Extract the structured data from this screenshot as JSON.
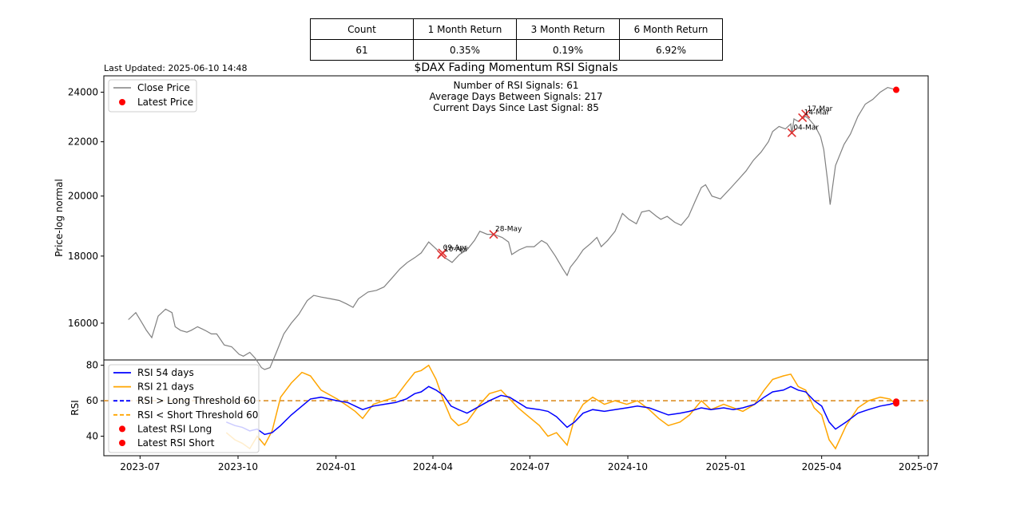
{
  "stats_table": {
    "headers": [
      "Count",
      "1 Month Return",
      "3 Month Return",
      "6 Month Return"
    ],
    "values": [
      "61",
      "0.35%",
      "0.19%",
      "6.92%"
    ]
  },
  "last_updated": "Last Updated: 2025-06-10 14:48",
  "chart_data": [
    {
      "type": "line",
      "title": "$DAX Fading Momentum RSI Signals",
      "ylabel": "Price-log normal",
      "ylim": [
        15000,
        24700
      ],
      "yscale": "log",
      "yticks": [
        16000,
        18000,
        20000,
        22000,
        24000
      ],
      "xlim": [
        "2023-05-28",
        "2025-07-10"
      ],
      "xticks": [
        "2023-07",
        "2023-10",
        "2024-01",
        "2024-04",
        "2024-07",
        "2024-10",
        "2025-01",
        "2025-04",
        "2025-07"
      ],
      "info_lines": [
        "Number of RSI Signals: 61",
        "Average Days Between Signals: 217",
        "Current Days Since Last Signal: 85"
      ],
      "legend": {
        "position": "top-left",
        "entries": [
          "Close Price",
          "Latest Price"
        ]
      },
      "colors": {
        "close": "#808080",
        "latest": "#ff0000",
        "signal": "#e03030"
      },
      "series": [
        {
          "name": "Close Price",
          "x": [
            "2023-06-20",
            "2023-06-27",
            "2023-07-03",
            "2023-07-07",
            "2023-07-12",
            "2023-07-18",
            "2023-07-25",
            "2023-07-31",
            "2023-08-03",
            "2023-08-08",
            "2023-08-14",
            "2023-08-18",
            "2023-08-24",
            "2023-08-31",
            "2023-09-06",
            "2023-09-11",
            "2023-09-18",
            "2023-09-25",
            "2023-10-02",
            "2023-10-06",
            "2023-10-12",
            "2023-10-17",
            "2023-10-23",
            "2023-10-26",
            "2023-10-31",
            "2023-11-06",
            "2023-11-13",
            "2023-11-20",
            "2023-11-27",
            "2023-12-05",
            "2023-12-11",
            "2023-12-18",
            "2023-12-27",
            "2024-01-04",
            "2024-01-11",
            "2024-01-17",
            "2024-01-22",
            "2024-01-31",
            "2024-02-08",
            "2024-02-15",
            "2024-02-22",
            "2024-03-01",
            "2024-03-08",
            "2024-03-15",
            "2024-03-21",
            "2024-03-28",
            "2024-04-05",
            "2024-04-10",
            "2024-04-19",
            "2024-04-26",
            "2024-05-03",
            "2024-05-10",
            "2024-05-15",
            "2024-05-22",
            "2024-05-28",
            "2024-06-05",
            "2024-06-11",
            "2024-06-14",
            "2024-06-21",
            "2024-06-28",
            "2024-07-05",
            "2024-07-12",
            "2024-07-17",
            "2024-07-25",
            "2024-08-01",
            "2024-08-05",
            "2024-08-08",
            "2024-08-14",
            "2024-08-20",
            "2024-08-27",
            "2024-09-02",
            "2024-09-06",
            "2024-09-12",
            "2024-09-19",
            "2024-09-26",
            "2024-10-02",
            "2024-10-09",
            "2024-10-14",
            "2024-10-21",
            "2024-10-28",
            "2024-11-01",
            "2024-11-07",
            "2024-11-14",
            "2024-11-20",
            "2024-11-27",
            "2024-12-03",
            "2024-12-09",
            "2024-12-13",
            "2024-12-19",
            "2024-12-27",
            "2025-01-06",
            "2025-01-13",
            "2025-01-20",
            "2025-01-27",
            "2025-02-03",
            "2025-02-10",
            "2025-02-14",
            "2025-02-20",
            "2025-02-26",
            "2025-03-03",
            "2025-03-04",
            "2025-03-06",
            "2025-03-10",
            "2025-03-13",
            "2025-03-17",
            "2025-03-20",
            "2025-03-26",
            "2025-03-31",
            "2025-04-03",
            "2025-04-07",
            "2025-04-09",
            "2025-04-14",
            "2025-04-22",
            "2025-04-28",
            "2025-05-05",
            "2025-05-12",
            "2025-05-19",
            "2025-05-26",
            "2025-06-02",
            "2025-06-06",
            "2025-06-10"
          ],
          "values": [
            16100,
            16300,
            16000,
            15800,
            15600,
            16200,
            16400,
            16300,
            15900,
            15800,
            15750,
            15800,
            15900,
            15800,
            15700,
            15700,
            15400,
            15350,
            15150,
            15100,
            15200,
            15050,
            14800,
            14750,
            14800,
            15200,
            15700,
            16000,
            16250,
            16650,
            16800,
            16750,
            16700,
            16650,
            16550,
            16450,
            16700,
            16900,
            16950,
            17050,
            17300,
            17600,
            17800,
            17950,
            18100,
            18450,
            18200,
            18000,
            17800,
            18050,
            18200,
            18500,
            18800,
            18700,
            18700,
            18600,
            18450,
            18050,
            18200,
            18300,
            18300,
            18500,
            18400,
            18000,
            17600,
            17400,
            17650,
            17900,
            18200,
            18400,
            18600,
            18300,
            18500,
            18800,
            19400,
            19200,
            19050,
            19450,
            19500,
            19300,
            19200,
            19300,
            19100,
            19000,
            19300,
            19800,
            20300,
            20400,
            20000,
            19900,
            20300,
            20600,
            20900,
            21300,
            21600,
            22000,
            22400,
            22600,
            22500,
            22700,
            22300,
            22900,
            22800,
            22900,
            23000,
            22900,
            22600,
            22200,
            21700,
            20400,
            19700,
            21100,
            21900,
            22300,
            23000,
            23500,
            23700,
            24000,
            24200,
            24150,
            24100
          ]
        },
        {
          "name": "Latest Price",
          "x": [
            "2025-06-10"
          ],
          "values": [
            24100
          ]
        },
        {
          "name": "RSI Signals",
          "x": [
            "2024-04-09",
            "2024-04-10",
            "2024-05-28",
            "2025-03-04",
            "2025-03-14",
            "2025-03-17"
          ],
          "values": [
            18050,
            18100,
            18700,
            22350,
            22950,
            23100
          ]
        }
      ],
      "annotations": [
        {
          "label": "10-Apr",
          "x": "2024-04-10"
        },
        {
          "label": "09-Apr",
          "x": "2024-04-09"
        },
        {
          "label": "28-May",
          "x": "2024-05-28"
        },
        {
          "label": "04-Mar",
          "x": "2025-03-04"
        },
        {
          "label": "14-Mar",
          "x": "2025-03-14"
        },
        {
          "label": "17-Mar",
          "x": "2025-03-17"
        }
      ]
    },
    {
      "type": "line",
      "ylabel": "RSI",
      "ylim": [
        29,
        83
      ],
      "yticks": [
        40,
        60,
        80
      ],
      "xlim": [
        "2023-05-28",
        "2025-07-10"
      ],
      "legend": {
        "position": "top-left",
        "entries": [
          "RSI 54 days",
          "RSI 21 days",
          "RSI > Long Threshold 60",
          "RSI < Short Threshold 60",
          "Latest RSI Long",
          "Latest RSI Short"
        ]
      },
      "colors": {
        "rsi54": "#0000ff",
        "rsi21": "#ffa500",
        "long_threshold": "#0000ff",
        "short_threshold": "#ffa500",
        "latest": "#ff0000"
      },
      "thresholds": {
        "long": 60,
        "short": 60
      },
      "series": [
        {
          "name": "RSI 54 days",
          "x": [
            "2023-09-20",
            "2023-09-28",
            "2023-10-05",
            "2023-10-12",
            "2023-10-19",
            "2023-10-26",
            "2023-11-02",
            "2023-11-10",
            "2023-11-20",
            "2023-11-30",
            "2023-12-08",
            "2023-12-18",
            "2024-01-02",
            "2024-01-12",
            "2024-01-19",
            "2024-01-26",
            "2024-02-05",
            "2024-02-15",
            "2024-02-26",
            "2024-03-07",
            "2024-03-15",
            "2024-03-21",
            "2024-03-28",
            "2024-04-04",
            "2024-04-11",
            "2024-04-18",
            "2024-04-25",
            "2024-05-03",
            "2024-05-15",
            "2024-05-24",
            "2024-06-04",
            "2024-06-12",
            "2024-06-20",
            "2024-06-28",
            "2024-07-10",
            "2024-07-18",
            "2024-07-26",
            "2024-08-05",
            "2024-08-12",
            "2024-08-20",
            "2024-08-29",
            "2024-09-09",
            "2024-09-19",
            "2024-09-30",
            "2024-10-10",
            "2024-10-21",
            "2024-10-30",
            "2024-11-08",
            "2024-11-19",
            "2024-11-28",
            "2024-12-09",
            "2024-12-18",
            "2024-12-30",
            "2025-01-08",
            "2025-01-17",
            "2025-01-28",
            "2025-02-06",
            "2025-02-14",
            "2025-02-24",
            "2025-03-03",
            "2025-03-10",
            "2025-03-17",
            "2025-03-25",
            "2025-04-01",
            "2025-04-08",
            "2025-04-14",
            "2025-04-24",
            "2025-05-05",
            "2025-05-15",
            "2025-05-26",
            "2025-06-04",
            "2025-06-10"
          ],
          "values": [
            48,
            46,
            45,
            43,
            44,
            41,
            42,
            46,
            52,
            57,
            61,
            62,
            60,
            59,
            57,
            55,
            57,
            58,
            59,
            61,
            64,
            65,
            68,
            66,
            63,
            57,
            55,
            53,
            57,
            60,
            63,
            62,
            59,
            56,
            55,
            54,
            51,
            45,
            48,
            53,
            55,
            54,
            55,
            56,
            57,
            56,
            54,
            52,
            53,
            54,
            56,
            55,
            56,
            55,
            56,
            58,
            62,
            65,
            66,
            68,
            66,
            65,
            60,
            57,
            48,
            44,
            48,
            53,
            55,
            57,
            58,
            59
          ]
        },
        {
          "name": "RSI 21 days",
          "x": [
            "2023-09-20",
            "2023-09-28",
            "2023-10-05",
            "2023-10-12",
            "2023-10-19",
            "2023-10-26",
            "2023-11-02",
            "2023-11-10",
            "2023-11-20",
            "2023-11-30",
            "2023-12-08",
            "2023-12-18",
            "2024-01-02",
            "2024-01-12",
            "2024-01-19",
            "2024-01-26",
            "2024-02-05",
            "2024-02-15",
            "2024-02-26",
            "2024-03-07",
            "2024-03-15",
            "2024-03-21",
            "2024-03-28",
            "2024-04-04",
            "2024-04-11",
            "2024-04-18",
            "2024-04-25",
            "2024-05-03",
            "2024-05-15",
            "2024-05-24",
            "2024-06-04",
            "2024-06-12",
            "2024-06-20",
            "2024-06-28",
            "2024-07-10",
            "2024-07-18",
            "2024-07-26",
            "2024-08-05",
            "2024-08-12",
            "2024-08-20",
            "2024-08-29",
            "2024-09-09",
            "2024-09-19",
            "2024-09-30",
            "2024-10-10",
            "2024-10-21",
            "2024-10-30",
            "2024-11-08",
            "2024-11-19",
            "2024-11-28",
            "2024-12-09",
            "2024-12-18",
            "2024-12-30",
            "2025-01-08",
            "2025-01-17",
            "2025-01-28",
            "2025-02-06",
            "2025-02-14",
            "2025-02-24",
            "2025-03-03",
            "2025-03-10",
            "2025-03-17",
            "2025-03-25",
            "2025-04-01",
            "2025-04-08",
            "2025-04-14",
            "2025-04-24",
            "2025-05-05",
            "2025-05-15",
            "2025-05-26",
            "2025-06-04",
            "2025-06-10"
          ],
          "values": [
            42,
            38,
            36,
            33,
            40,
            35,
            43,
            62,
            70,
            76,
            74,
            66,
            61,
            57,
            54,
            50,
            58,
            60,
            62,
            70,
            76,
            77,
            80,
            72,
            60,
            50,
            46,
            48,
            58,
            64,
            66,
            61,
            56,
            52,
            46,
            40,
            42,
            35,
            50,
            58,
            62,
            58,
            60,
            58,
            60,
            55,
            50,
            46,
            48,
            52,
            60,
            55,
            58,
            56,
            54,
            58,
            66,
            72,
            74,
            75,
            68,
            66,
            56,
            52,
            38,
            33,
            46,
            56,
            60,
            62,
            61,
            58
          ]
        }
      ],
      "latest": [
        {
          "name": "Latest RSI Long",
          "x": "2025-06-10",
          "value": 59.5
        },
        {
          "name": "Latest RSI Short",
          "x": "2025-06-10",
          "value": 58.5
        }
      ]
    }
  ]
}
